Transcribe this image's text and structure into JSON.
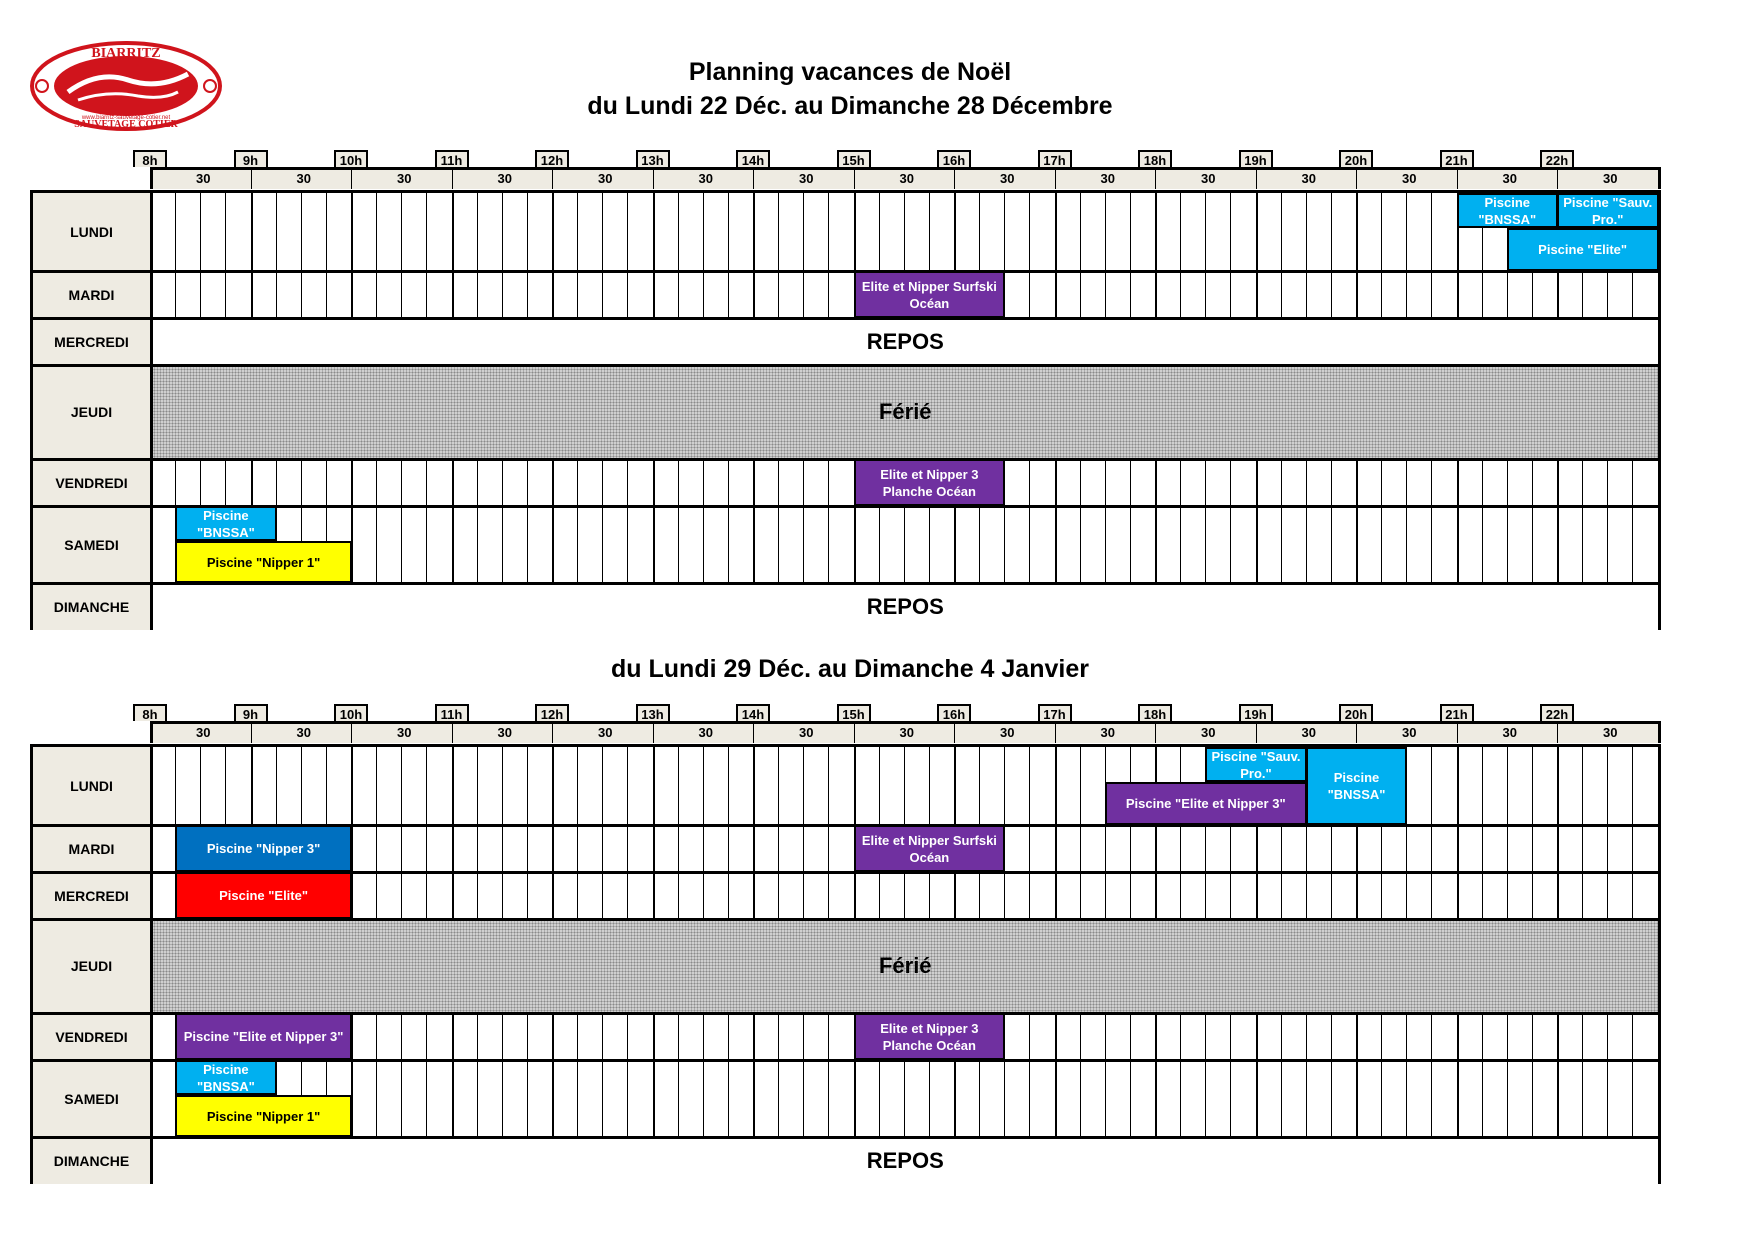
{
  "header": {
    "title_line1": "Planning vacances de Noël",
    "title_line2": "du Lundi 22 Déc. au Dimanche 28 Décembre",
    "title_week2": "du Lundi 29 Déc. au Dimanche 4 Janvier",
    "logo_text_top": "BIARRITZ",
    "logo_text_bottom": "SAUVETAGE COTIER",
    "logo_url": "www.biarritz-sauvetage-cotier.net"
  },
  "hours": [
    "8h",
    "9h",
    "10h",
    "11h",
    "12h",
    "13h",
    "14h",
    "15h",
    "16h",
    "17h",
    "18h",
    "19h",
    "20h",
    "21h",
    "22h"
  ],
  "half_label": "30",
  "colors": {
    "purple": "#7030a0",
    "cyan": "#00b0f0",
    "blue": "#0070c0",
    "red": "#ff0000",
    "yellow": "#ffff00",
    "header_bg": "#eeebe2"
  },
  "weeks": [
    {
      "days": [
        {
          "name": "LUNDI",
          "type": "grid"
        },
        {
          "name": "MARDI",
          "type": "grid"
        },
        {
          "name": "MERCREDI",
          "type": "full",
          "text": "REPOS"
        },
        {
          "name": "JEUDI",
          "type": "ferie",
          "text": "Férié"
        },
        {
          "name": "VENDREDI",
          "type": "grid"
        },
        {
          "name": "SAMEDI",
          "type": "grid"
        },
        {
          "name": "DIMANCHE",
          "type": "full",
          "text": "REPOS"
        }
      ],
      "events": [
        {
          "day": 0,
          "start": 21.0,
          "end": 22.0,
          "lane": "top",
          "text": "Piscine \"BNSSA\"",
          "color": "cyan"
        },
        {
          "day": 0,
          "start": 22.0,
          "end": 23.0,
          "lane": "top",
          "text": "Piscine \"Sauv. Pro.\"",
          "color": "cyan"
        },
        {
          "day": 0,
          "start": 21.5,
          "end": 23.0,
          "lane": "bottom",
          "text": "Piscine \"Elite\"",
          "color": "cyan"
        },
        {
          "day": 1,
          "start": 15.0,
          "end": 16.5,
          "lane": "full",
          "text": "Elite et Nipper Surfski Océan",
          "color": "purple"
        },
        {
          "day": 4,
          "start": 15.0,
          "end": 16.5,
          "lane": "full",
          "text": "Elite et Nipper 3 Planche Océan",
          "color": "purple"
        },
        {
          "day": 5,
          "start": 8.25,
          "end": 9.25,
          "lane": "top",
          "text": "Piscine \"BNSSA\"",
          "color": "cyan"
        },
        {
          "day": 5,
          "start": 8.25,
          "end": 10.0,
          "lane": "bottom",
          "text": "Piscine \"Nipper 1\"",
          "color": "yellow"
        }
      ]
    },
    {
      "days": [
        {
          "name": "LUNDI",
          "type": "grid"
        },
        {
          "name": "MARDI",
          "type": "grid"
        },
        {
          "name": "MERCREDI",
          "type": "grid"
        },
        {
          "name": "JEUDI",
          "type": "ferie",
          "text": "Férié"
        },
        {
          "name": "VENDREDI",
          "type": "grid"
        },
        {
          "name": "SAMEDI",
          "type": "grid"
        },
        {
          "name": "DIMANCHE",
          "type": "full",
          "text": "REPOS"
        }
      ],
      "events": [
        {
          "day": 0,
          "start": 18.5,
          "end": 19.5,
          "lane": "top",
          "text": "Piscine \"Sauv. Pro.\"",
          "color": "cyan"
        },
        {
          "day": 0,
          "start": 17.5,
          "end": 19.5,
          "lane": "bottom",
          "text": "Piscine \"Elite et Nipper 3\"",
          "color": "purple"
        },
        {
          "day": 0,
          "start": 19.5,
          "end": 20.5,
          "lane": "full",
          "text": "Piscine \"BNSSA\"",
          "color": "cyan"
        },
        {
          "day": 1,
          "start": 8.25,
          "end": 10.0,
          "lane": "full",
          "text": "Piscine \"Nipper 3\"",
          "color": "blue"
        },
        {
          "day": 1,
          "start": 15.0,
          "end": 16.5,
          "lane": "full",
          "text": "Elite et Nipper Surfski Océan",
          "color": "purple"
        },
        {
          "day": 2,
          "start": 8.25,
          "end": 10.0,
          "lane": "full",
          "text": "Piscine \"Elite\"",
          "color": "red"
        },
        {
          "day": 4,
          "start": 8.25,
          "end": 10.0,
          "lane": "full",
          "text": "Piscine \"Elite et Nipper 3\"",
          "color": "purple"
        },
        {
          "day": 4,
          "start": 15.0,
          "end": 16.5,
          "lane": "full",
          "text": "Elite et Nipper 3 Planche Océan",
          "color": "purple"
        },
        {
          "day": 5,
          "start": 8.25,
          "end": 9.25,
          "lane": "top",
          "text": "Piscine \"BNSSA\"",
          "color": "cyan"
        },
        {
          "day": 5,
          "start": 8.25,
          "end": 10.0,
          "lane": "bottom",
          "text": "Piscine \"Nipper 1\"",
          "color": "yellow"
        }
      ]
    }
  ]
}
